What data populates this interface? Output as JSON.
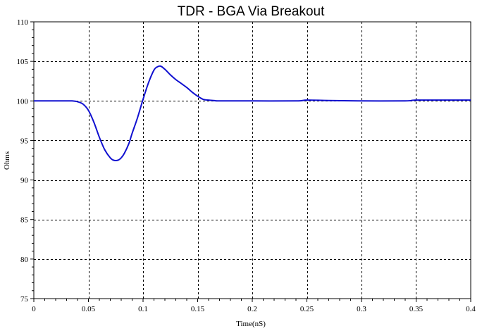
{
  "chart_data": {
    "type": "line",
    "title": "TDR - BGA Via Breakout",
    "xlabel": "Time(nS)",
    "ylabel": "Ohms",
    "xlim": [
      0,
      0.4
    ],
    "ylim": [
      75,
      110
    ],
    "grid": true,
    "x_ticks": [
      0,
      0.05,
      0.1,
      0.15,
      0.2,
      0.25,
      0.3,
      0.35,
      0.4
    ],
    "x_tick_labels": [
      "0",
      "0.05",
      "0.1",
      "0.15",
      "0.2",
      "0.25",
      "0.3",
      "0.35",
      "0.4"
    ],
    "y_ticks": [
      75,
      80,
      85,
      90,
      95,
      100,
      105,
      110
    ],
    "y_tick_labels": [
      "75",
      "80",
      "85",
      "90",
      "95",
      "100",
      "105",
      "110"
    ],
    "series_color": "#1010d0",
    "series": [
      {
        "x": [
          0,
          0.01,
          0.02,
          0.03,
          0.035,
          0.04,
          0.045,
          0.05,
          0.055,
          0.06,
          0.065,
          0.07,
          0.073,
          0.077,
          0.08,
          0.083,
          0.087,
          0.09,
          0.095,
          0.1,
          0.105,
          0.11,
          0.113,
          0.116,
          0.12,
          0.125,
          0.13,
          0.135,
          0.14,
          0.145,
          0.15,
          0.155,
          0.16,
          0.165,
          0.17,
          0.2,
          0.24,
          0.25,
          0.27,
          0.3,
          0.34,
          0.35,
          0.38,
          0.4
        ],
        "y": [
          100,
          100,
          100,
          100,
          100,
          99.9,
          99.6,
          98.8,
          97.3,
          95.4,
          93.8,
          92.8,
          92.5,
          92.5,
          92.8,
          93.4,
          94.6,
          95.9,
          97.9,
          100.2,
          102.3,
          103.9,
          104.3,
          104.4,
          104.0,
          103.3,
          102.7,
          102.2,
          101.7,
          101.1,
          100.6,
          100.2,
          100.1,
          100.05,
          100.0,
          100.0,
          100.0,
          100.1,
          100.05,
          100.0,
          100.0,
          100.1,
          100.1,
          100.1
        ]
      }
    ]
  }
}
